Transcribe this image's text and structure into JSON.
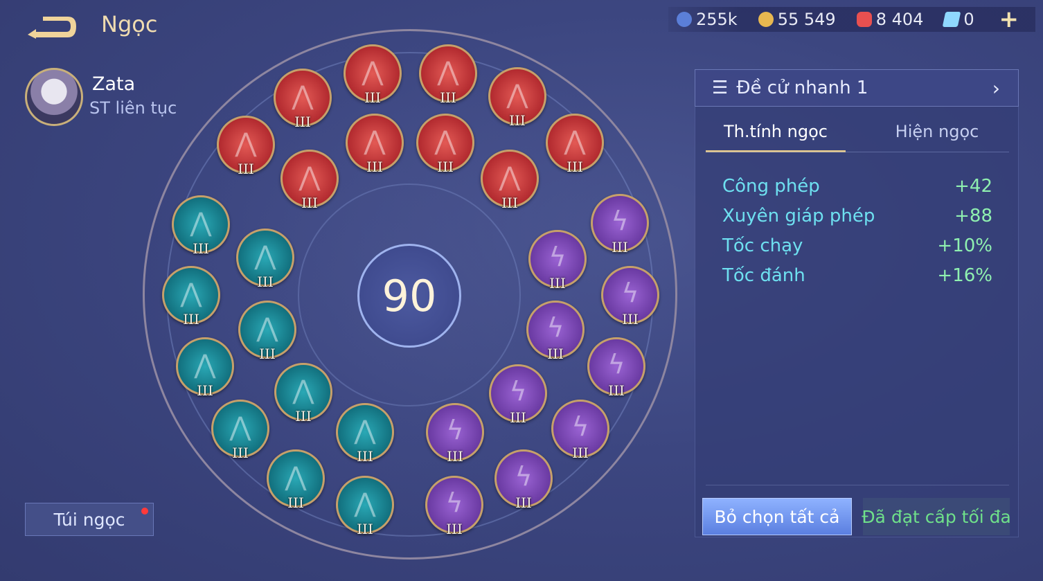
{
  "header": {
    "title": "Ngọc",
    "back_icon": "back-arrow-icon"
  },
  "hero": {
    "name": "Zata",
    "role": "ST liên tục"
  },
  "currency": [
    {
      "icon": "silver-coin-icon",
      "value": "255k",
      "color": "#5b7fd8"
    },
    {
      "icon": "gold-coin-icon",
      "value": "55 549",
      "color": "#e8b850"
    },
    {
      "icon": "ruby-icon",
      "value": "8 404",
      "color": "#e85050"
    },
    {
      "icon": "card-icon",
      "value": "0",
      "color": "#8fd8ff"
    }
  ],
  "plus_label": "+",
  "center_level": "90",
  "gems": {
    "red": {
      "count": 10,
      "level": "III",
      "color": "#c8363a"
    },
    "teal": {
      "count": 10,
      "level": "III",
      "color": "#168090"
    },
    "purple": {
      "count": 10,
      "level": "III",
      "color": "#7a46b4"
    }
  },
  "bag": {
    "label": "Túi ngọc",
    "has_notification": true
  },
  "panel": {
    "preset": "Đề cử nhanh 1",
    "tabs": [
      {
        "label": "Th.tính ngọc",
        "active": true
      },
      {
        "label": "Hiện ngọc",
        "active": false
      }
    ],
    "stats": [
      {
        "name": "Công phép",
        "value": "+42"
      },
      {
        "name": "Xuyên giáp phép",
        "value": "+88"
      },
      {
        "name": "Tốc chạy",
        "value": "+10%"
      },
      {
        "name": "Tốc đánh",
        "value": "+16%"
      }
    ],
    "deselect_label": "Bỏ chọn tất cả",
    "status_label": "Đã đạt cấp tối đa"
  },
  "colors": {
    "accent": "#e4c88a",
    "stat_name": "#6ee0f0",
    "stat_value": "#8ff0b0"
  }
}
